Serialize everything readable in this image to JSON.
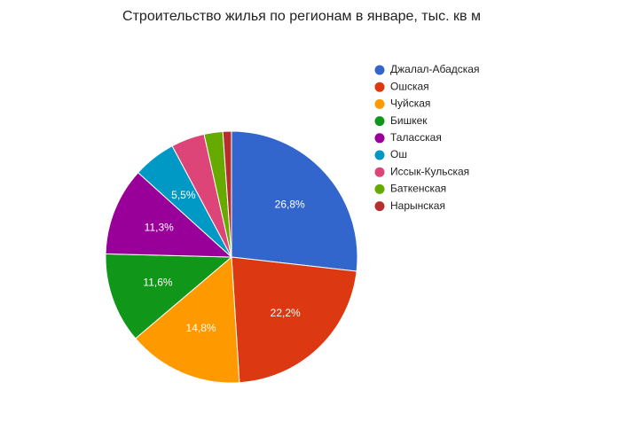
{
  "chart_data": {
    "type": "pie",
    "title": "Строительство жилья по регионам в январе, тыс. кв м",
    "categories": [
      "Джалал-Абадская",
      "Ошская",
      "Чуйская",
      "Бишкек",
      "Таласская",
      "Ош",
      "Иссык-Кульская",
      "Баткенская",
      "Нарынская"
    ],
    "values": [
      26.8,
      22.2,
      14.8,
      11.6,
      11.3,
      5.5,
      4.3,
      2.4,
      1.1
    ],
    "value_labels": [
      "26,8%",
      "22,2%",
      "14,8%",
      "11,6%",
      "11,3%",
      "5,5%",
      null,
      null,
      null
    ],
    "colors": [
      "#3366cc",
      "#dc3912",
      "#ff9900",
      "#109618",
      "#990099",
      "#0099c6",
      "#dd4477",
      "#66aa00",
      "#b82e2e"
    ],
    "legend": "right"
  }
}
